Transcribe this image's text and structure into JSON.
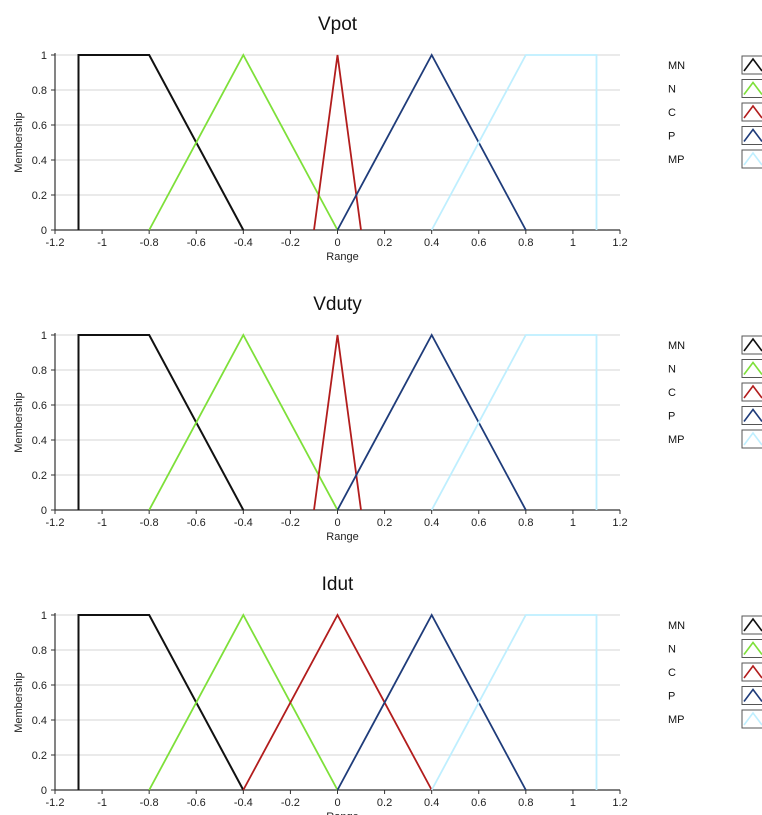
{
  "colors": {
    "MN": "#111111",
    "N": "#7ee03a",
    "C": "#b21d1d",
    "P": "#1f3c7a",
    "MP": "#bfefff",
    "grid": "#d4d4d4",
    "axis": "#333333"
  },
  "legend_labels": [
    "MN",
    "N",
    "C",
    "P",
    "MP"
  ],
  "chart_data": [
    {
      "type": "line",
      "title": "Vpot",
      "xlabel": "Range",
      "ylabel": "Membership",
      "xlim": [
        -1.2,
        1.2
      ],
      "ylim": [
        0,
        1
      ],
      "x_ticks": [
        -1.2,
        -1,
        -0.8,
        -0.6,
        -0.4,
        -0.2,
        0,
        0.2,
        0.4,
        0.6,
        0.8,
        1,
        1.2
      ],
      "y_ticks": [
        0,
        0.2,
        0.4,
        0.6,
        0.8,
        1
      ],
      "grid": true,
      "legend": "right",
      "series": [
        {
          "name": "MN",
          "points": [
            [
              -1.1,
              0
            ],
            [
              -1.1,
              1
            ],
            [
              -0.8,
              1
            ],
            [
              -0.4,
              0
            ]
          ]
        },
        {
          "name": "N",
          "points": [
            [
              -0.8,
              0
            ],
            [
              -0.4,
              1
            ],
            [
              0,
              0
            ]
          ]
        },
        {
          "name": "C",
          "points": [
            [
              -0.1,
              0
            ],
            [
              0,
              1
            ],
            [
              0.1,
              0
            ]
          ]
        },
        {
          "name": "P",
          "points": [
            [
              0,
              0
            ],
            [
              0.4,
              1
            ],
            [
              0.8,
              0
            ]
          ]
        },
        {
          "name": "MP",
          "points": [
            [
              0.4,
              0
            ],
            [
              0.8,
              1
            ],
            [
              1.1,
              1
            ],
            [
              1.1,
              0
            ]
          ]
        }
      ]
    },
    {
      "type": "line",
      "title": "Vduty",
      "xlabel": "Range",
      "ylabel": "Membership",
      "xlim": [
        -1.2,
        1.2
      ],
      "ylim": [
        0,
        1
      ],
      "x_ticks": [
        -1.2,
        -1,
        -0.8,
        -0.6,
        -0.4,
        -0.2,
        0,
        0.2,
        0.4,
        0.6,
        0.8,
        1,
        1.2
      ],
      "y_ticks": [
        0,
        0.2,
        0.4,
        0.6,
        0.8,
        1
      ],
      "grid": true,
      "legend": "right",
      "series": [
        {
          "name": "MN",
          "points": [
            [
              -1.1,
              0
            ],
            [
              -1.1,
              1
            ],
            [
              -0.8,
              1
            ],
            [
              -0.4,
              0
            ]
          ]
        },
        {
          "name": "N",
          "points": [
            [
              -0.8,
              0
            ],
            [
              -0.4,
              1
            ],
            [
              0,
              0
            ]
          ]
        },
        {
          "name": "C",
          "points": [
            [
              -0.1,
              0
            ],
            [
              0,
              1
            ],
            [
              0.1,
              0
            ]
          ]
        },
        {
          "name": "P",
          "points": [
            [
              0,
              0
            ],
            [
              0.4,
              1
            ],
            [
              0.8,
              0
            ]
          ]
        },
        {
          "name": "MP",
          "points": [
            [
              0.4,
              0
            ],
            [
              0.8,
              1
            ],
            [
              1.1,
              1
            ],
            [
              1.1,
              0
            ]
          ]
        }
      ]
    },
    {
      "type": "line",
      "title": "Idut",
      "xlabel": "Range",
      "ylabel": "Membership",
      "xlim": [
        -1.2,
        1.2
      ],
      "ylim": [
        0,
        1
      ],
      "x_ticks": [
        -1.2,
        -1,
        -0.8,
        -0.6,
        -0.4,
        -0.2,
        0,
        0.2,
        0.4,
        0.6,
        0.8,
        1,
        1.2
      ],
      "y_ticks": [
        0,
        0.2,
        0.4,
        0.6,
        0.8,
        1
      ],
      "grid": true,
      "legend": "right",
      "series": [
        {
          "name": "MN",
          "points": [
            [
              -1.1,
              0
            ],
            [
              -1.1,
              1
            ],
            [
              -0.8,
              1
            ],
            [
              -0.4,
              0
            ]
          ]
        },
        {
          "name": "N",
          "points": [
            [
              -0.8,
              0
            ],
            [
              -0.4,
              1
            ],
            [
              0,
              0
            ]
          ]
        },
        {
          "name": "C",
          "points": [
            [
              -0.4,
              0
            ],
            [
              0,
              1
            ],
            [
              0.4,
              0
            ]
          ]
        },
        {
          "name": "P",
          "points": [
            [
              0,
              0
            ],
            [
              0.4,
              1
            ],
            [
              0.8,
              0
            ]
          ]
        },
        {
          "name": "MP",
          "points": [
            [
              0.4,
              0
            ],
            [
              0.8,
              1
            ],
            [
              1.1,
              1
            ],
            [
              1.1,
              0
            ]
          ]
        }
      ]
    }
  ]
}
